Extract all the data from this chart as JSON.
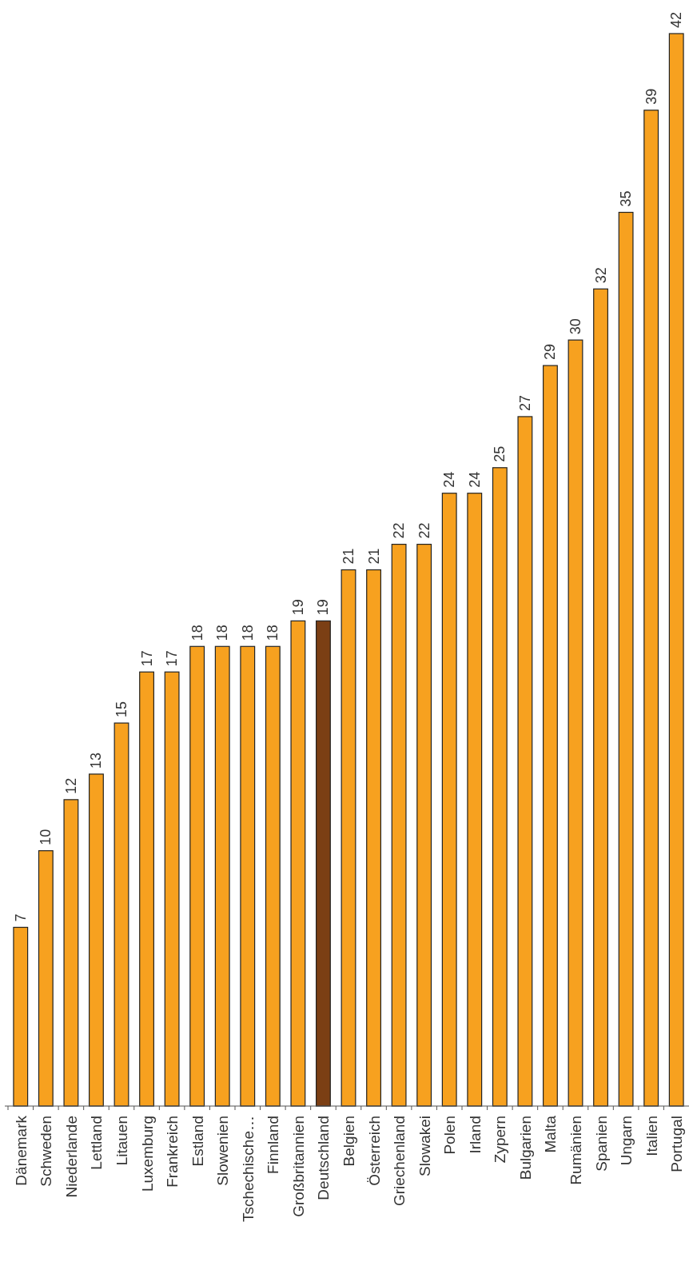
{
  "chart_data": {
    "type": "bar",
    "categories": [
      "Dänemark",
      "Schweden",
      "Niederlande",
      "Lettland",
      "Litauen",
      "Luxemburg",
      "Frankreich",
      "Estland",
      "Slowenien",
      "Tschechische…",
      "Finnland",
      "Großbritannien",
      "Deutschland",
      "Belgien",
      "Österreich",
      "Griechenland",
      "Slowakei",
      "Polen",
      "Irland",
      "Zypern",
      "Bulgarien",
      "Malta",
      "Rumänien",
      "Spanien",
      "Ungarn",
      "Italien",
      "Portugal"
    ],
    "values": [
      7,
      10,
      12,
      13,
      15,
      17,
      17,
      18,
      18,
      18,
      18,
      19,
      19,
      21,
      21,
      22,
      22,
      24,
      24,
      25,
      27,
      29,
      30,
      32,
      35,
      39,
      42
    ],
    "colors": [
      "#f7a11f",
      "#f7a11f",
      "#f7a11f",
      "#f7a11f",
      "#f7a11f",
      "#f7a11f",
      "#f7a11f",
      "#f7a11f",
      "#f7a11f",
      "#f7a11f",
      "#f7a11f",
      "#f7a11f",
      "#7b3f14",
      "#f7a11f",
      "#f7a11f",
      "#f7a11f",
      "#f7a11f",
      "#f7a11f",
      "#f7a11f",
      "#f7a11f",
      "#f7a11f",
      "#f7a11f",
      "#f7a11f",
      "#f7a11f",
      "#f7a11f",
      "#f7a11f",
      "#f7a11f"
    ],
    "data_labels": true
  }
}
